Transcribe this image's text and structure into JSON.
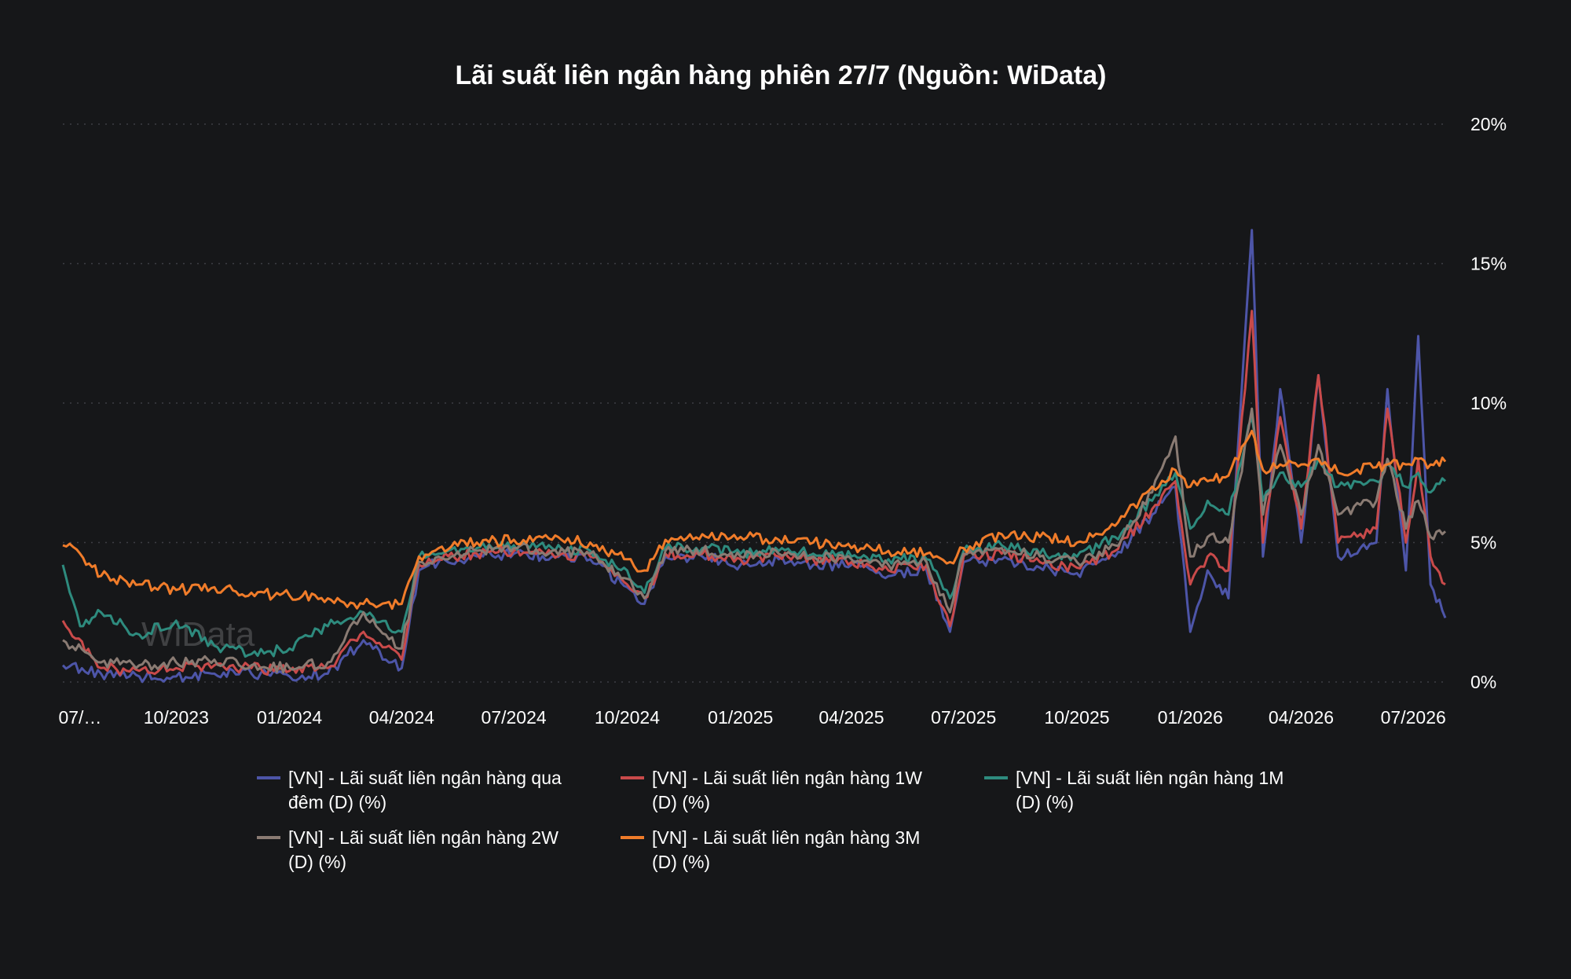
{
  "chart_data": {
    "type": "line",
    "title": "Lãi suất liên ngân hàng phiên 27/7 (Nguồn: WiData)",
    "watermark": "WiData",
    "xlabel": "",
    "ylabel": "",
    "x_range": [
      "2023-07-01",
      "2026-07-27"
    ],
    "x_ticks": [
      {
        "date": "2023-07-15",
        "label": "07/…"
      },
      {
        "date": "2023-10-01",
        "label": "10/2023"
      },
      {
        "date": "2024-01-01",
        "label": "01/2024"
      },
      {
        "date": "2024-04-01",
        "label": "04/2024"
      },
      {
        "date": "2024-07-01",
        "label": "07/2024"
      },
      {
        "date": "2024-10-01",
        "label": "10/2024"
      },
      {
        "date": "2025-01-01",
        "label": "01/2025"
      },
      {
        "date": "2025-04-01",
        "label": "04/2025"
      },
      {
        "date": "2025-07-01",
        "label": "07/2025"
      },
      {
        "date": "2025-10-01",
        "label": "10/2025"
      },
      {
        "date": "2026-01-01",
        "label": "01/2026"
      },
      {
        "date": "2026-04-01",
        "label": "04/2026"
      },
      {
        "date": "2026-07-01",
        "label": "07/2026"
      }
    ],
    "ylim": [
      0,
      20
    ],
    "y_ticks": [
      {
        "value": 0,
        "label": "0%"
      },
      {
        "value": 5,
        "label": "5%"
      },
      {
        "value": 10,
        "label": "10%"
      },
      {
        "value": 15,
        "label": "15%"
      },
      {
        "value": 20,
        "label": "20%"
      }
    ],
    "y_axis_position": "right",
    "grid": true,
    "legend_position": "bottom",
    "series": [
      {
        "name": "[VN] - Lãi suất liên ngân hàng qua đêm (D) (%)",
        "legend_lines": [
          "[VN] - Lãi suất liên ngân hàng qua",
          "đêm (D) (%)"
        ],
        "color": "#4d55a8",
        "points": [
          [
            "2023-07-01",
            0.6
          ],
          [
            "2023-08-01",
            0.3
          ],
          [
            "2023-09-01",
            0.2
          ],
          [
            "2023-10-01",
            0.2
          ],
          [
            "2023-11-01",
            0.3
          ],
          [
            "2023-12-01",
            0.3
          ],
          [
            "2024-01-01",
            0.2
          ],
          [
            "2024-02-01",
            0.3
          ],
          [
            "2024-03-01",
            1.5
          ],
          [
            "2024-04-01",
            0.5
          ],
          [
            "2024-04-15",
            4.0
          ],
          [
            "2024-05-01",
            4.3
          ],
          [
            "2024-06-01",
            4.5
          ],
          [
            "2024-07-01",
            4.6
          ],
          [
            "2024-08-01",
            4.5
          ],
          [
            "2024-09-01",
            4.4
          ],
          [
            "2024-10-01",
            3.4
          ],
          [
            "2024-10-15",
            2.8
          ],
          [
            "2024-11-01",
            4.5
          ],
          [
            "2024-12-01",
            4.5
          ],
          [
            "2025-01-01",
            4.2
          ],
          [
            "2025-02-01",
            4.4
          ],
          [
            "2025-03-01",
            4.2
          ],
          [
            "2025-04-01",
            4.2
          ],
          [
            "2025-05-01",
            3.8
          ],
          [
            "2025-06-01",
            4.0
          ],
          [
            "2025-06-20",
            1.8
          ],
          [
            "2025-07-01",
            4.3
          ],
          [
            "2025-08-01",
            4.4
          ],
          [
            "2025-09-01",
            4.1
          ],
          [
            "2025-10-01",
            3.9
          ],
          [
            "2025-11-01",
            4.5
          ],
          [
            "2025-12-01",
            6.0
          ],
          [
            "2025-12-20",
            7.0
          ],
          [
            "2026-01-01",
            1.8
          ],
          [
            "2026-01-15",
            4.0
          ],
          [
            "2026-02-01",
            3.0
          ],
          [
            "2026-02-20",
            16.2
          ],
          [
            "2026-03-01",
            4.5
          ],
          [
            "2026-03-15",
            10.5
          ],
          [
            "2026-04-01",
            5.0
          ],
          [
            "2026-04-15",
            11.0
          ],
          [
            "2026-05-01",
            4.5
          ],
          [
            "2026-06-01",
            5.0
          ],
          [
            "2026-06-10",
            10.5
          ],
          [
            "2026-06-25",
            4.0
          ],
          [
            "2026-07-05",
            12.4
          ],
          [
            "2026-07-15",
            3.5
          ],
          [
            "2026-07-27",
            2.3
          ]
        ]
      },
      {
        "name": "[VN] - Lãi suất liên ngân hàng 1W (D) (%)",
        "legend_lines": [
          "[VN] - Lãi suất liên ngân hàng 1W",
          "(D) (%)"
        ],
        "color": "#c94a4a",
        "points": [
          [
            "2023-07-01",
            2.2
          ],
          [
            "2023-08-01",
            0.5
          ],
          [
            "2023-09-01",
            0.4
          ],
          [
            "2023-10-01",
            0.5
          ],
          [
            "2023-11-01",
            0.6
          ],
          [
            "2023-12-01",
            0.5
          ],
          [
            "2024-01-01",
            0.4
          ],
          [
            "2024-02-01",
            0.5
          ],
          [
            "2024-03-01",
            1.8
          ],
          [
            "2024-04-01",
            0.8
          ],
          [
            "2024-04-15",
            4.2
          ],
          [
            "2024-05-01",
            4.4
          ],
          [
            "2024-06-01",
            4.6
          ],
          [
            "2024-07-01",
            4.7
          ],
          [
            "2024-08-01",
            4.6
          ],
          [
            "2024-09-01",
            4.5
          ],
          [
            "2024-10-01",
            3.5
          ],
          [
            "2024-10-15",
            3.0
          ],
          [
            "2024-11-01",
            4.6
          ],
          [
            "2024-12-01",
            4.6
          ],
          [
            "2025-01-01",
            4.4
          ],
          [
            "2025-02-01",
            4.5
          ],
          [
            "2025-03-01",
            4.4
          ],
          [
            "2025-04-01",
            4.3
          ],
          [
            "2025-05-01",
            4.0
          ],
          [
            "2025-06-01",
            4.2
          ],
          [
            "2025-06-20",
            2.0
          ],
          [
            "2025-07-01",
            4.5
          ],
          [
            "2025-08-01",
            4.6
          ],
          [
            "2025-09-01",
            4.3
          ],
          [
            "2025-10-01",
            4.1
          ],
          [
            "2025-11-01",
            4.7
          ],
          [
            "2025-12-01",
            6.2
          ],
          [
            "2025-12-20",
            7.2
          ],
          [
            "2026-01-01",
            3.5
          ],
          [
            "2026-01-15",
            4.5
          ],
          [
            "2026-02-01",
            4.0
          ],
          [
            "2026-02-20",
            13.3
          ],
          [
            "2026-03-01",
            5.0
          ],
          [
            "2026-03-15",
            9.5
          ],
          [
            "2026-04-01",
            5.5
          ],
          [
            "2026-04-15",
            11.0
          ],
          [
            "2026-05-01",
            5.0
          ],
          [
            "2026-06-01",
            5.5
          ],
          [
            "2026-06-10",
            9.8
          ],
          [
            "2026-06-25",
            5.0
          ],
          [
            "2026-07-05",
            8.0
          ],
          [
            "2026-07-15",
            4.5
          ],
          [
            "2026-07-27",
            3.5
          ]
        ]
      },
      {
        "name": "[VN] - Lãi suất liên ngân hàng 1M (D) (%)",
        "legend_lines": [
          "[VN] - Lãi suất liên ngân hàng 1M",
          "(D) (%)"
        ],
        "color": "#2e8b7e",
        "points": [
          [
            "2023-07-01",
            4.2
          ],
          [
            "2023-07-15",
            2.0
          ],
          [
            "2023-08-01",
            2.5
          ],
          [
            "2023-09-01",
            1.7
          ],
          [
            "2023-10-01",
            2.2
          ],
          [
            "2023-11-01",
            1.3
          ],
          [
            "2023-12-01",
            1.0
          ],
          [
            "2024-01-01",
            1.2
          ],
          [
            "2024-02-01",
            2.0
          ],
          [
            "2024-03-01",
            2.5
          ],
          [
            "2024-04-01",
            1.8
          ],
          [
            "2024-04-15",
            4.5
          ],
          [
            "2024-05-01",
            4.6
          ],
          [
            "2024-06-01",
            4.8
          ],
          [
            "2024-07-01",
            4.9
          ],
          [
            "2024-08-01",
            4.8
          ],
          [
            "2024-09-01",
            4.7
          ],
          [
            "2024-10-01",
            4.0
          ],
          [
            "2024-10-15",
            3.2
          ],
          [
            "2024-11-01",
            4.8
          ],
          [
            "2024-12-01",
            4.8
          ],
          [
            "2025-01-01",
            4.6
          ],
          [
            "2025-02-01",
            4.7
          ],
          [
            "2025-03-01",
            4.6
          ],
          [
            "2025-04-01",
            4.5
          ],
          [
            "2025-05-01",
            4.4
          ],
          [
            "2025-06-01",
            4.4
          ],
          [
            "2025-06-20",
            3.0
          ],
          [
            "2025-07-01",
            4.7
          ],
          [
            "2025-08-01",
            4.9
          ],
          [
            "2025-09-01",
            4.6
          ],
          [
            "2025-10-01",
            4.5
          ],
          [
            "2025-11-01",
            5.2
          ],
          [
            "2025-12-01",
            6.5
          ],
          [
            "2025-12-20",
            7.5
          ],
          [
            "2026-01-01",
            5.5
          ],
          [
            "2026-01-15",
            6.5
          ],
          [
            "2026-02-01",
            6.0
          ],
          [
            "2026-02-20",
            9.5
          ],
          [
            "2026-03-01",
            6.5
          ],
          [
            "2026-03-15",
            7.5
          ],
          [
            "2026-04-01",
            7.0
          ],
          [
            "2026-04-15",
            8.0
          ],
          [
            "2026-05-01",
            7.0
          ],
          [
            "2026-06-01",
            7.2
          ],
          [
            "2026-06-10",
            7.8
          ],
          [
            "2026-06-25",
            7.0
          ],
          [
            "2026-07-05",
            7.5
          ],
          [
            "2026-07-15",
            6.8
          ],
          [
            "2026-07-27",
            7.2
          ]
        ]
      },
      {
        "name": "[VN] - Lãi suất liên ngân hàng 2W (D) (%)",
        "legend_lines": [
          "[VN] - Lãi suất liên ngân hàng 2W",
          "(D) (%)"
        ],
        "color": "#8a7b73",
        "points": [
          [
            "2023-07-01",
            1.5
          ],
          [
            "2023-08-01",
            0.7
          ],
          [
            "2023-09-01",
            0.6
          ],
          [
            "2023-10-01",
            0.7
          ],
          [
            "2023-11-01",
            0.8
          ],
          [
            "2023-12-01",
            0.6
          ],
          [
            "2024-01-01",
            0.5
          ],
          [
            "2024-02-01",
            0.7
          ],
          [
            "2024-03-01",
            2.5
          ],
          [
            "2024-04-01",
            1.2
          ],
          [
            "2024-04-15",
            4.3
          ],
          [
            "2024-05-01",
            4.5
          ],
          [
            "2024-06-01",
            4.7
          ],
          [
            "2024-07-01",
            4.8
          ],
          [
            "2024-08-01",
            4.7
          ],
          [
            "2024-09-01",
            4.6
          ],
          [
            "2024-10-01",
            3.7
          ],
          [
            "2024-10-15",
            3.0
          ],
          [
            "2024-11-01",
            4.7
          ],
          [
            "2024-12-01",
            4.7
          ],
          [
            "2025-01-01",
            4.5
          ],
          [
            "2025-02-01",
            4.6
          ],
          [
            "2025-03-01",
            4.5
          ],
          [
            "2025-04-01",
            4.4
          ],
          [
            "2025-05-01",
            4.2
          ],
          [
            "2025-06-01",
            4.3
          ],
          [
            "2025-06-20",
            2.5
          ],
          [
            "2025-07-01",
            4.6
          ],
          [
            "2025-08-01",
            4.8
          ],
          [
            "2025-09-01",
            4.5
          ],
          [
            "2025-10-01",
            4.3
          ],
          [
            "2025-11-01",
            4.9
          ],
          [
            "2025-12-01",
            6.8
          ],
          [
            "2025-12-20",
            8.8
          ],
          [
            "2026-01-01",
            4.5
          ],
          [
            "2026-01-15",
            5.2
          ],
          [
            "2026-02-01",
            5.0
          ],
          [
            "2026-02-20",
            9.8
          ],
          [
            "2026-03-01",
            6.0
          ],
          [
            "2026-03-15",
            8.5
          ],
          [
            "2026-04-01",
            6.0
          ],
          [
            "2026-04-15",
            8.5
          ],
          [
            "2026-05-01",
            6.0
          ],
          [
            "2026-06-01",
            6.5
          ],
          [
            "2026-06-10",
            8.0
          ],
          [
            "2026-06-25",
            5.5
          ],
          [
            "2026-07-05",
            6.5
          ],
          [
            "2026-07-15",
            5.2
          ],
          [
            "2026-07-27",
            5.4
          ]
        ]
      },
      {
        "name": "[VN] - Lãi suất liên ngân hàng 3M (D) (%)",
        "legend_lines": [
          "[VN] - Lãi suất liên ngân hàng 3M",
          "(D) (%)"
        ],
        "color": "#f07c2a",
        "points": [
          [
            "2023-07-01",
            4.9
          ],
          [
            "2023-07-15",
            4.6
          ],
          [
            "2023-08-01",
            3.8
          ],
          [
            "2023-09-01",
            3.5
          ],
          [
            "2023-10-01",
            3.3
          ],
          [
            "2023-11-01",
            3.4
          ],
          [
            "2023-12-01",
            3.2
          ],
          [
            "2024-01-01",
            3.1
          ],
          [
            "2024-02-01",
            3.0
          ],
          [
            "2024-03-01",
            2.8
          ],
          [
            "2024-04-01",
            2.8
          ],
          [
            "2024-04-15",
            4.5
          ],
          [
            "2024-05-01",
            4.8
          ],
          [
            "2024-06-01",
            5.0
          ],
          [
            "2024-07-01",
            5.1
          ],
          [
            "2024-08-01",
            5.1
          ],
          [
            "2024-09-01",
            5.0
          ],
          [
            "2024-10-01",
            4.4
          ],
          [
            "2024-10-15",
            4.0
          ],
          [
            "2024-11-01",
            5.1
          ],
          [
            "2024-12-01",
            5.3
          ],
          [
            "2025-01-01",
            5.2
          ],
          [
            "2025-02-01",
            5.1
          ],
          [
            "2025-03-01",
            5.0
          ],
          [
            "2025-04-01",
            4.8
          ],
          [
            "2025-05-01",
            4.7
          ],
          [
            "2025-06-01",
            4.6
          ],
          [
            "2025-06-20",
            4.3
          ],
          [
            "2025-07-01",
            4.8
          ],
          [
            "2025-08-01",
            5.3
          ],
          [
            "2025-09-01",
            5.2
          ],
          [
            "2025-10-01",
            5.0
          ],
          [
            "2025-11-01",
            5.6
          ],
          [
            "2025-12-01",
            7.0
          ],
          [
            "2025-12-20",
            7.6
          ],
          [
            "2026-01-01",
            7.0
          ],
          [
            "2026-01-15",
            7.2
          ],
          [
            "2026-02-01",
            7.4
          ],
          [
            "2026-02-20",
            9.0
          ],
          [
            "2026-03-01",
            7.6
          ],
          [
            "2026-03-15",
            7.8
          ],
          [
            "2026-04-01",
            7.8
          ],
          [
            "2026-04-15",
            8.0
          ],
          [
            "2026-05-01",
            7.5
          ],
          [
            "2026-06-01",
            7.7
          ],
          [
            "2026-06-10",
            7.8
          ],
          [
            "2026-06-25",
            7.8
          ],
          [
            "2026-07-05",
            8.0
          ],
          [
            "2026-07-15",
            7.8
          ],
          [
            "2026-07-27",
            7.9
          ]
        ]
      }
    ]
  }
}
